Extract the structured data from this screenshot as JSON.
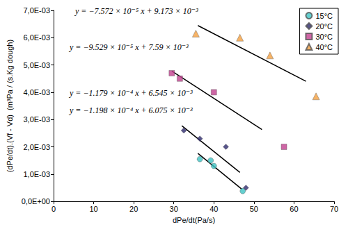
{
  "chart_data": {
    "type": "scatter",
    "x_label": "dPe/dt(Pa/s)",
    "y_label": "(dPe/dt).(Vf - Vd)  (m³Pa / (s.Kg dough)",
    "xlim": [
      0,
      70
    ],
    "xticks": [
      0,
      10,
      20,
      30,
      40,
      50,
      60,
      70
    ],
    "ylim": [
      0,
      0.007
    ],
    "yticks": [
      {
        "value": 0,
        "label": "0,0E+00"
      },
      {
        "value": 0.001,
        "label": "1,0E-03"
      },
      {
        "value": 0.002,
        "label": "2,0E-03"
      },
      {
        "value": 0.003,
        "label": "3,0E-03"
      },
      {
        "value": 0.004,
        "label": "4,0E-03"
      },
      {
        "value": 0.005,
        "label": "5,0E-03"
      },
      {
        "value": 0.006,
        "label": "6,0E-03"
      },
      {
        "value": 0.007,
        "label": "7,0E-03"
      }
    ],
    "grid": false,
    "legend": "upper right",
    "series": [
      {
        "name": "15°C",
        "color": "#3fc3c3",
        "marker": "circle",
        "x": [
          36.5,
          39.2,
          40.0,
          47.2
        ],
        "values": [
          0.00155,
          0.0015,
          0.0013,
          0.00038
        ],
        "trend": {
          "equation": "y = −1.198 × 10⁻⁴ x + 6.075 × 10⁻³",
          "slope": -0.0001198,
          "intercept": 0.006075,
          "x": [
            36,
            47
          ],
          "color": "#000000",
          "line_style": "solid"
        }
      },
      {
        "name": "20°C",
        "color": "#2e2a6e",
        "marker": "diamond",
        "x": [
          32.5,
          36.5,
          43.0,
          48.0
        ],
        "values": [
          0.0026,
          0.0023,
          0.002,
          0.0005
        ],
        "trend": {
          "equation": "y = −1.179 × 10⁻⁴ x + 6.545 × 10⁻³",
          "slope": -0.0001179,
          "intercept": 0.006545,
          "x": [
            32,
            46.5
          ],
          "color": "#000000",
          "line_style": "solid"
        }
      },
      {
        "name": "30°C",
        "color": "#c2408f",
        "marker": "square",
        "x": [
          29.5,
          31.5,
          40.0,
          57.5
        ],
        "values": [
          0.0047,
          0.0045,
          0.004,
          0.002
        ],
        "trend": {
          "equation": "y = −9.529 × 10⁻⁵ x + 7.59 × 10⁻³",
          "slope": -9.529e-05,
          "intercept": 0.00759,
          "x": [
            29.5,
            52
          ],
          "color": "#000000",
          "line_style": "solid"
        }
      },
      {
        "name": "40°C",
        "color": "#f5a040",
        "marker": "triangle",
        "x": [
          35.5,
          46.5,
          54.0,
          65.5
        ],
        "values": [
          0.00615,
          0.006,
          0.00535,
          0.00385
        ],
        "trend": {
          "equation": "y = −7.572 × 10⁻⁵ x + 9.173 × 10⁻³",
          "slope": -7.572e-05,
          "intercept": 0.009173,
          "x": [
            36,
            63
          ],
          "color": "#000000",
          "line_style": "solid"
        }
      }
    ]
  }
}
